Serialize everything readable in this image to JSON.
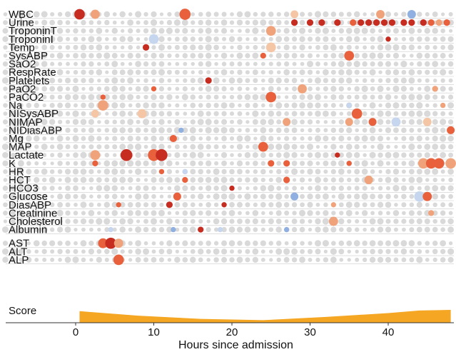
{
  "chart_data": {
    "type": "scatter",
    "title": "",
    "xlabel": "Hours since admission",
    "ylabel": "",
    "xlim": [
      -9,
      48.5
    ],
    "x_ticks": [
      0,
      10,
      20,
      30,
      40
    ],
    "score_label": "Score",
    "grid": false,
    "colors": {
      "neutral": "#d9d9d9",
      "pos_light": "#f5c6a5",
      "pos_mid": "#f0a27a",
      "pos_strong": "#e8613c",
      "pos_max": "#c62c20",
      "neg_light": "#c6d6ee",
      "neg_mid": "#8fb0e0",
      "score_fill": "#f5a623",
      "separator": "#cccccc"
    },
    "features": [
      "WBC",
      "Urine",
      "TroponinT",
      "TroponinI",
      "Temp",
      "SysABP",
      "SaO2",
      "RespRate",
      "Platelets",
      "PaO2",
      "PaCO2",
      "Na",
      "NISysABP",
      "NIMAP",
      "NIDiasABP",
      "Mg",
      "MAP",
      "Lactate",
      "K",
      "HR",
      "HCT",
      "HCO3",
      "Glucose",
      "DiasABP",
      "Creatinine",
      "Cholesterol",
      "Albumin",
      "AST",
      "ALT",
      "ALP"
    ],
    "highlights": [
      {
        "feature": "WBC",
        "x": 0.5,
        "level": 4,
        "size": 1.6
      },
      {
        "feature": "WBC",
        "x": 2.5,
        "level": 2,
        "size": 1.4
      },
      {
        "feature": "WBC",
        "x": 14.0,
        "level": 3,
        "size": 1.7
      },
      {
        "feature": "WBC",
        "x": 28.0,
        "level": 1,
        "size": 1.2
      },
      {
        "feature": "WBC",
        "x": 39.0,
        "level": 2,
        "size": 1.3
      },
      {
        "feature": "WBC",
        "x": 43.0,
        "level": -2,
        "size": 1.3
      },
      {
        "feature": "Urine",
        "x": 28.0,
        "level": 4,
        "size": 1.0
      },
      {
        "feature": "Urine",
        "x": 30.0,
        "level": 4,
        "size": 1.0
      },
      {
        "feature": "Urine",
        "x": 31.5,
        "level": 4,
        "size": 1.0
      },
      {
        "feature": "Urine",
        "x": 33.5,
        "level": 4,
        "size": 1.0
      },
      {
        "feature": "Urine",
        "x": 35.5,
        "level": 3,
        "size": 1.0
      },
      {
        "feature": "Urine",
        "x": 36.5,
        "level": 4,
        "size": 1.0
      },
      {
        "feature": "Urine",
        "x": 37.5,
        "level": 4,
        "size": 1.0
      },
      {
        "feature": "Urine",
        "x": 38.5,
        "level": 4,
        "size": 1.0
      },
      {
        "feature": "Urine",
        "x": 39.5,
        "level": 4,
        "size": 1.0
      },
      {
        "feature": "Urine",
        "x": 40.5,
        "level": 4,
        "size": 1.0
      },
      {
        "feature": "Urine",
        "x": 42.0,
        "level": 4,
        "size": 1.0
      },
      {
        "feature": "Urine",
        "x": 43.0,
        "level": 4,
        "size": 1.0
      },
      {
        "feature": "Urine",
        "x": 44.5,
        "level": 4,
        "size": 1.0
      },
      {
        "feature": "Urine",
        "x": 45.5,
        "level": 3,
        "size": 1.0
      },
      {
        "feature": "Urine",
        "x": 46.5,
        "level": 2,
        "size": 1.0
      },
      {
        "feature": "Urine",
        "x": 47.5,
        "level": 3,
        "size": 1.0
      },
      {
        "feature": "TroponinT",
        "x": 25.0,
        "level": 2,
        "size": 1.5
      },
      {
        "feature": "TroponinI",
        "x": 10.0,
        "level": -1,
        "size": 1.5
      },
      {
        "feature": "TroponinI",
        "x": 40.0,
        "level": 4,
        "size": 0.8
      },
      {
        "feature": "Temp",
        "x": 9.0,
        "level": 4,
        "size": 1.0
      },
      {
        "feature": "Temp",
        "x": 25.0,
        "level": 1,
        "size": 1.5
      },
      {
        "feature": "SysABP",
        "x": 24.0,
        "level": 3,
        "size": 0.9
      },
      {
        "feature": "SysABP",
        "x": 35.0,
        "level": 3,
        "size": 1.5
      },
      {
        "feature": "Platelets",
        "x": 17.0,
        "level": 4,
        "size": 1.0
      },
      {
        "feature": "PaO2",
        "x": 10.0,
        "level": 3,
        "size": 0.8
      },
      {
        "feature": "PaO2",
        "x": 29.0,
        "level": 2,
        "size": 1.4
      },
      {
        "feature": "PaO2",
        "x": 46.0,
        "level": 2,
        "size": 0.9
      },
      {
        "feature": "PaCO2",
        "x": 3.5,
        "level": 3,
        "size": 0.8
      },
      {
        "feature": "PaCO2",
        "x": 25.0,
        "level": 3,
        "size": 1.6
      },
      {
        "feature": "Na",
        "x": 3.5,
        "level": 2,
        "size": 1.6
      },
      {
        "feature": "Na",
        "x": 35.0,
        "level": -1,
        "size": 0.8
      },
      {
        "feature": "Na",
        "x": 47.0,
        "level": 2,
        "size": 0.8
      },
      {
        "feature": "NISysABP",
        "x": 2.5,
        "level": 1,
        "size": 1.2
      },
      {
        "feature": "NISysABP",
        "x": 8.5,
        "level": 1,
        "size": 1.4
      },
      {
        "feature": "NISysABP",
        "x": 36.0,
        "level": 3,
        "size": 1.6
      },
      {
        "feature": "NIMAP",
        "x": 27.0,
        "level": 2,
        "size": 1.2
      },
      {
        "feature": "NIMAP",
        "x": 35.0,
        "level": 2,
        "size": 1.2
      },
      {
        "feature": "NIMAP",
        "x": 38.0,
        "level": 3,
        "size": 1.2
      },
      {
        "feature": "NIMAP",
        "x": 41.0,
        "level": -1,
        "size": 1.4
      },
      {
        "feature": "NIMAP",
        "x": 45.0,
        "level": 1,
        "size": 1.3
      },
      {
        "feature": "NIDiasABP",
        "x": 13.5,
        "level": -2,
        "size": 0.8
      },
      {
        "feature": "NIDiasABP",
        "x": 48.0,
        "level": 3,
        "size": 1.2
      },
      {
        "feature": "Mg",
        "x": 12.5,
        "level": 3,
        "size": 1.1
      },
      {
        "feature": "MAP",
        "x": 24.0,
        "level": 3,
        "size": 1.5
      },
      {
        "feature": "Lactate",
        "x": 2.5,
        "level": 2,
        "size": 1.5
      },
      {
        "feature": "Lactate",
        "x": 6.5,
        "level": 4,
        "size": 1.8
      },
      {
        "feature": "Lactate",
        "x": 10.0,
        "level": 3,
        "size": 1.8
      },
      {
        "feature": "Lactate",
        "x": 11.0,
        "level": 4,
        "size": 1.8
      },
      {
        "feature": "Lactate",
        "x": 33.5,
        "level": 4,
        "size": 0.8
      },
      {
        "feature": "K",
        "x": 2.5,
        "level": 3,
        "size": 0.9
      },
      {
        "feature": "K",
        "x": 25.0,
        "level": 3,
        "size": 1.0
      },
      {
        "feature": "K",
        "x": 27.0,
        "level": 3,
        "size": 1.0
      },
      {
        "feature": "K",
        "x": 35.0,
        "level": 3,
        "size": 0.8
      },
      {
        "feature": "K",
        "x": 44.5,
        "level": 2,
        "size": 1.6
      },
      {
        "feature": "K",
        "x": 45.5,
        "level": 3,
        "size": 1.6
      },
      {
        "feature": "K",
        "x": 46.5,
        "level": 3,
        "size": 1.6
      },
      {
        "feature": "K",
        "x": 48.0,
        "level": 2,
        "size": 1.6
      },
      {
        "feature": "HR",
        "x": 11.0,
        "level": 3,
        "size": 0.8
      },
      {
        "feature": "HR",
        "x": 14.0,
        "level": -1,
        "size": 0.8
      },
      {
        "feature": "HCT",
        "x": 14.0,
        "level": 3,
        "size": 0.9
      },
      {
        "feature": "HCT",
        "x": 27.0,
        "level": 3,
        "size": 1.0
      },
      {
        "feature": "HCT",
        "x": 37.5,
        "level": 2,
        "size": 1.3
      },
      {
        "feature": "HCO3",
        "x": 20.0,
        "level": 4,
        "size": 0.8
      },
      {
        "feature": "Glucose",
        "x": 13.0,
        "level": 3,
        "size": 1.2
      },
      {
        "feature": "Glucose",
        "x": 28.0,
        "level": -2,
        "size": 1.2
      },
      {
        "feature": "Glucose",
        "x": 44.0,
        "level": -1,
        "size": 1.6
      },
      {
        "feature": "Glucose",
        "x": 45.0,
        "level": 3,
        "size": 1.4
      },
      {
        "feature": "DiasABP",
        "x": 5.5,
        "level": 3,
        "size": 0.8
      },
      {
        "feature": "DiasABP",
        "x": 12.0,
        "level": 4,
        "size": 1.0
      },
      {
        "feature": "DiasABP",
        "x": 19.0,
        "level": 4,
        "size": 0.8
      },
      {
        "feature": "DiasABP",
        "x": 33.0,
        "level": 2,
        "size": 0.8
      },
      {
        "feature": "Creatinine",
        "x": 45.5,
        "level": 2,
        "size": 0.9
      },
      {
        "feature": "Cholesterol",
        "x": 33.0,
        "level": 2,
        "size": 1.4
      },
      {
        "feature": "Albumin",
        "x": 4.5,
        "level": -1,
        "size": 0.8
      },
      {
        "feature": "Albumin",
        "x": 12.5,
        "level": -2,
        "size": 0.8
      },
      {
        "feature": "Albumin",
        "x": 16.0,
        "level": 4,
        "size": 0.9
      },
      {
        "feature": "Albumin",
        "x": 18.5,
        "level": -1,
        "size": 0.8
      },
      {
        "feature": "Albumin",
        "x": 27.0,
        "level": -2,
        "size": 0.8
      },
      {
        "feature": "AST",
        "x": 3.5,
        "level": 3,
        "size": 1.5
      },
      {
        "feature": "AST",
        "x": 4.5,
        "level": 4,
        "size": 1.7
      },
      {
        "feature": "AST",
        "x": 5.5,
        "level": 2,
        "size": 1.4
      },
      {
        "feature": "ALP",
        "x": 5.5,
        "level": 3,
        "size": 1.6
      }
    ],
    "score": {
      "x": [
        0.5,
        8,
        16,
        24,
        32,
        40,
        44,
        48
      ],
      "values": [
        0.9,
        0.55,
        0.3,
        0.2,
        0.45,
        0.75,
        0.95,
        1.0
      ]
    }
  }
}
